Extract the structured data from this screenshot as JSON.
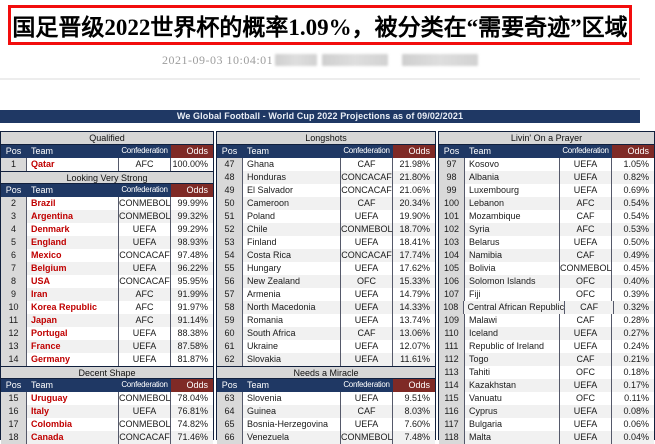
{
  "headline": {
    "text": "国足晋级2022世界杯的概率1.09%，被分类在“需要奇迹”区域",
    "border_color": "#f20d0d"
  },
  "meta": {
    "timestamp": "2021-09-03 10:04:01",
    "redacted_blocks": 3
  },
  "table": {
    "banner": "We Global Football - World Cup 2022 Projections as of 09/02/2021",
    "columns": [
      "Pos",
      "Team",
      "Confederation",
      "Odds"
    ],
    "colors": {
      "header_navy": "#1f3864",
      "odds_maroon": "#7f2a26",
      "section_gray": "#d6d6d6",
      "pos_gray": "#d9d9d9",
      "team_red": "#c00000",
      "stripe": "#f1f1f1"
    },
    "groups": [
      {
        "name": "left",
        "team_style": "red-bold",
        "sections": [
          {
            "title": "Qualified",
            "rows": [
              [
                "1",
                "Qatar",
                "AFC",
                "100.00%"
              ]
            ]
          },
          {
            "title": "Looking Very Strong",
            "rows": [
              [
                "2",
                "Brazil",
                "CONMEBOL",
                "99.99%"
              ],
              [
                "3",
                "Argentina",
                "CONMEBOL",
                "99.32%"
              ],
              [
                "4",
                "Denmark",
                "UEFA",
                "99.29%"
              ],
              [
                "5",
                "England",
                "UEFA",
                "98.93%"
              ],
              [
                "6",
                "Mexico",
                "CONCACAF",
                "97.48%"
              ],
              [
                "7",
                "Belgium",
                "UEFA",
                "96.22%"
              ],
              [
                "8",
                "USA",
                "CONCACAF",
                "95.95%"
              ],
              [
                "9",
                "Iran",
                "AFC",
                "91.99%"
              ],
              [
                "10",
                "Korea Republic",
                "AFC",
                "91.97%"
              ],
              [
                "11",
                "Japan",
                "AFC",
                "91.14%"
              ],
              [
                "12",
                "Portugal",
                "UEFA",
                "88.38%"
              ],
              [
                "13",
                "France",
                "UEFA",
                "87.58%"
              ],
              [
                "14",
                "Germany",
                "UEFA",
                "81.87%"
              ]
            ]
          },
          {
            "title": "Decent Shape",
            "rows": [
              [
                "15",
                "Uruguay",
                "CONMEBOL",
                "78.04%"
              ],
              [
                "16",
                "Italy",
                "UEFA",
                "76.81%"
              ],
              [
                "17",
                "Colombia",
                "CONMEBOL",
                "74.82%"
              ],
              [
                "18",
                "Canada",
                "CONCACAF",
                "71.46%"
              ]
            ]
          }
        ]
      },
      {
        "name": "middle",
        "team_style": "plain",
        "sections": [
          {
            "title": "Longshots",
            "rows": [
              [
                "47",
                "Ghana",
                "CAF",
                "21.98%"
              ],
              [
                "48",
                "Honduras",
                "CONCACAF",
                "21.80%"
              ],
              [
                "49",
                "El Salvador",
                "CONCACAF",
                "21.06%"
              ],
              [
                "50",
                "Cameroon",
                "CAF",
                "20.34%"
              ],
              [
                "51",
                "Poland",
                "UEFA",
                "19.90%"
              ],
              [
                "52",
                "Chile",
                "CONMEBOL",
                "18.70%"
              ],
              [
                "53",
                "Finland",
                "UEFA",
                "18.41%"
              ],
              [
                "54",
                "Costa Rica",
                "CONCACAF",
                "17.74%"
              ],
              [
                "55",
                "Hungary",
                "UEFA",
                "17.62%"
              ],
              [
                "56",
                "New Zealand",
                "OFC",
                "15.33%"
              ],
              [
                "57",
                "Armenia",
                "UEFA",
                "14.79%"
              ],
              [
                "58",
                "North Macedonia",
                "UEFA",
                "14.33%"
              ],
              [
                "59",
                "Romania",
                "UEFA",
                "13.74%"
              ],
              [
                "60",
                "South Africa",
                "CAF",
                "13.06%"
              ],
              [
                "61",
                "Ukraine",
                "UEFA",
                "12.07%"
              ],
              [
                "62",
                "Slovakia",
                "UEFA",
                "11.61%"
              ]
            ]
          },
          {
            "title": "Needs a Miracle",
            "rows": [
              [
                "63",
                "Slovenia",
                "UEFA",
                "9.51%"
              ],
              [
                "64",
                "Guinea",
                "CAF",
                "8.03%"
              ],
              [
                "65",
                "Bosnia-Herzegovina",
                "UEFA",
                "7.60%"
              ],
              [
                "66",
                "Venezuela",
                "CONMEBOL",
                "7.48%"
              ]
            ]
          }
        ]
      },
      {
        "name": "right",
        "team_style": "plain",
        "sections": [
          {
            "title": "Livin' On a Prayer",
            "rows": [
              [
                "97",
                "Kosovo",
                "UEFA",
                "1.05%"
              ],
              [
                "98",
                "Albania",
                "UEFA",
                "0.82%"
              ],
              [
                "99",
                "Luxembourg",
                "UEFA",
                "0.69%"
              ],
              [
                "100",
                "Lebanon",
                "AFC",
                "0.54%"
              ],
              [
                "101",
                "Mozambique",
                "CAF",
                "0.54%"
              ],
              [
                "102",
                "Syria",
                "AFC",
                "0.53%"
              ],
              [
                "103",
                "Belarus",
                "UEFA",
                "0.50%"
              ],
              [
                "104",
                "Namibia",
                "CAF",
                "0.49%"
              ],
              [
                "105",
                "Bolivia",
                "CONMEBOL",
                "0.45%"
              ],
              [
                "106",
                "Solomon Islands",
                "OFC",
                "0.40%"
              ],
              [
                "107",
                "Fiji",
                "OFC",
                "0.39%"
              ],
              [
                "108",
                "Central African Republic",
                "CAF",
                "0.32%"
              ],
              [
                "109",
                "Malawi",
                "CAF",
                "0.28%"
              ],
              [
                "110",
                "Iceland",
                "UEFA",
                "0.27%"
              ],
              [
                "111",
                "Republic of Ireland",
                "UEFA",
                "0.24%"
              ],
              [
                "112",
                "Togo",
                "CAF",
                "0.21%"
              ],
              [
                "113",
                "Tahiti",
                "OFC",
                "0.18%"
              ],
              [
                "114",
                "Kazakhstan",
                "UEFA",
                "0.17%"
              ],
              [
                "115",
                "Vanuatu",
                "OFC",
                "0.11%"
              ],
              [
                "116",
                "Cyprus",
                "UEFA",
                "0.08%"
              ],
              [
                "117",
                "Bulgaria",
                "UEFA",
                "0.06%"
              ],
              [
                "118",
                "Malta",
                "UEFA",
                "0.04%"
              ]
            ]
          }
        ]
      }
    ]
  }
}
